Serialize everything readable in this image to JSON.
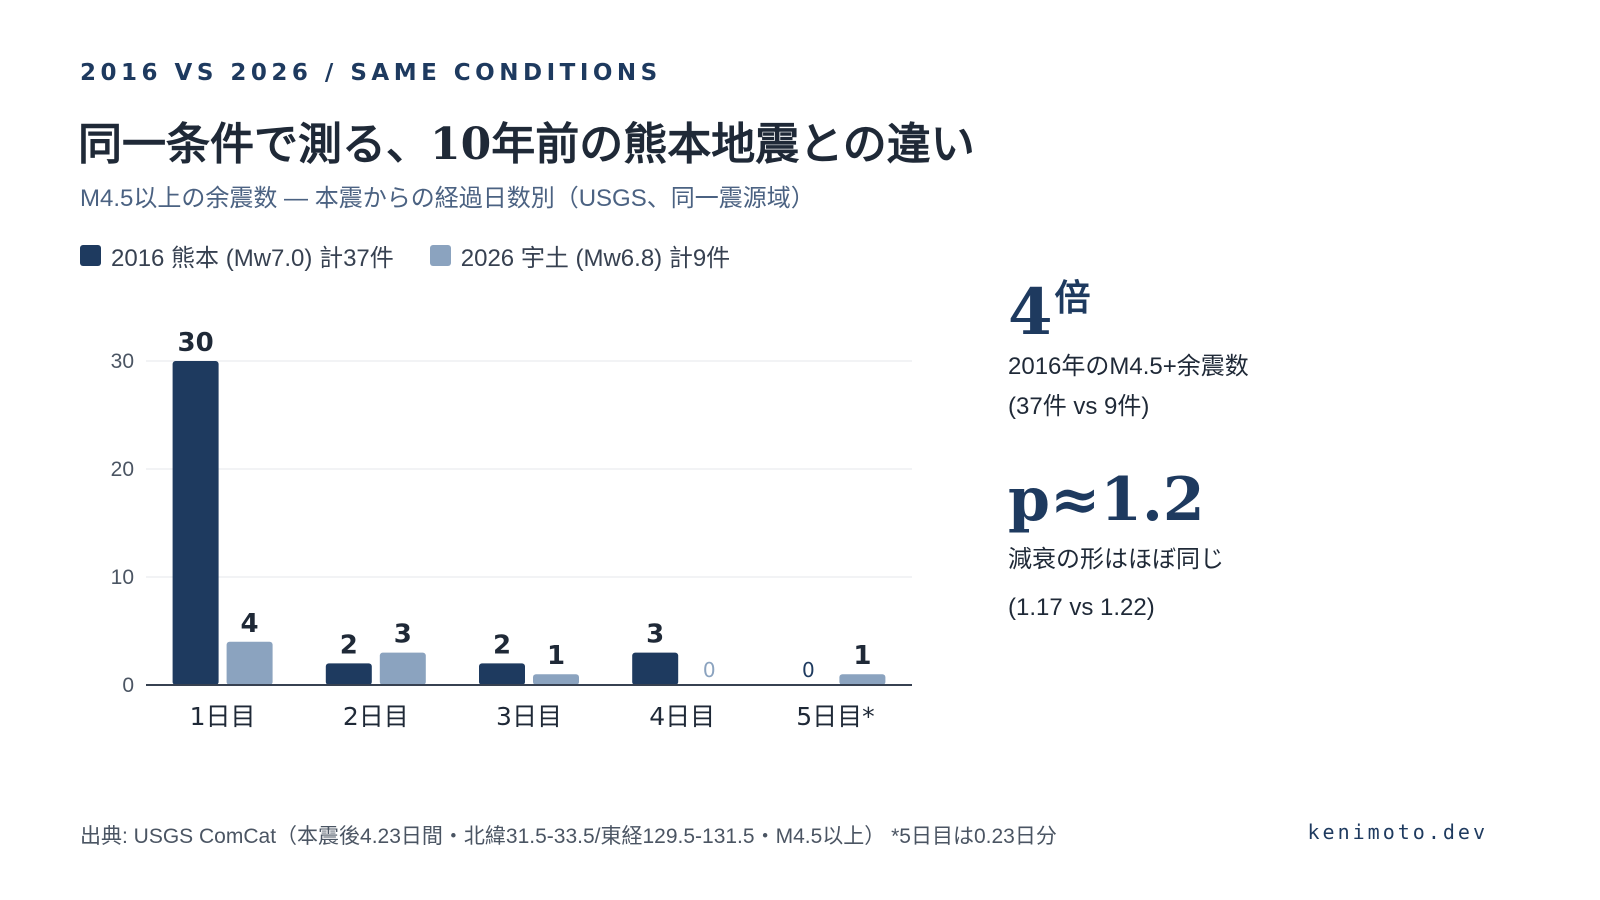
{
  "header": {
    "eyebrow": "2016 VS 2026 / SAME CONDITIONS",
    "title": "同一条件で測る、10年前の熊本地震との違い",
    "subtitle": "M4.5以上の余震数 ― 本震からの経過日数別（USGS、同一震源域）"
  },
  "legend": [
    {
      "label": "2016 熊本 (Mw7.0) 計37件",
      "color": "#1e3a5f"
    },
    {
      "label": "2026 宇土 (Mw6.8) 計9件",
      "color": "#8ba3bf"
    }
  ],
  "chart_data": {
    "type": "bar",
    "categories": [
      "1日目",
      "2日目",
      "3日目",
      "4日目",
      "5日目*"
    ],
    "series": [
      {
        "name": "2016 熊本 (Mw7.0) 計37件",
        "values": [
          30,
          2,
          2,
          3,
          0
        ],
        "color": "#1e3a5f"
      },
      {
        "name": "2026 宇土 (Mw6.8) 計9件",
        "values": [
          4,
          3,
          1,
          0,
          1
        ],
        "color": "#8ba3bf"
      }
    ],
    "yticks": [
      0,
      10,
      20,
      30
    ],
    "ylim": [
      0,
      30
    ],
    "grid": true,
    "legend_position": "top-left"
  },
  "stats": [
    {
      "value": "4",
      "unit": "倍",
      "desc_line1": "2016年のM4.5+余震数",
      "desc_line2": "(37件 vs 9件)"
    },
    {
      "value": "p≈1.2",
      "desc_line1": "減衰の形はほぼ同じ",
      "desc_line2": "(1.17 vs 1.22)"
    }
  ],
  "footer": {
    "source": "出典: USGS ComCat（本震後4.23日間・北緯31.5-33.5/東経129.5-131.5・M4.5以上） *5日目は0.23日分",
    "brand": "kenimoto.dev"
  },
  "colors": {
    "navy": "#1e3a5f",
    "light": "#8ba3bf",
    "grid": "#e5e7eb",
    "axis": "#374151"
  }
}
